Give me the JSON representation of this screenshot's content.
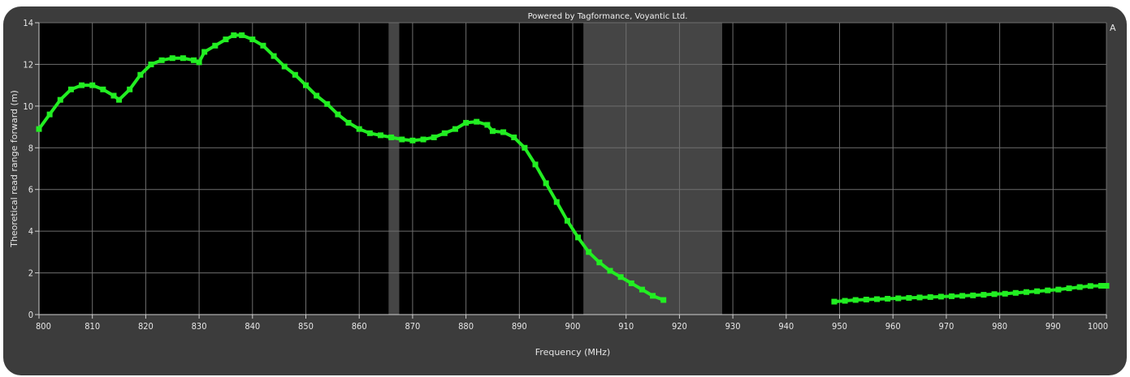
{
  "chart_data": {
    "type": "line",
    "credit": "Powered by Tagformance, Voyantic Ltd.",
    "xlabel": "Frequency (MHz)",
    "ylabel": "Theoretical read range forward (m)",
    "edge_label": "A",
    "xlim": [
      800,
      1000
    ],
    "ylim": [
      0,
      14
    ],
    "x_ticks": [
      800,
      810,
      820,
      830,
      840,
      850,
      860,
      870,
      880,
      890,
      900,
      910,
      920,
      930,
      940,
      950,
      960,
      970,
      980,
      990,
      1000
    ],
    "y_ticks": [
      0,
      2,
      4,
      6,
      8,
      10,
      12,
      14
    ],
    "grid": true,
    "colors": {
      "plot_background": "#000000",
      "frame": "#3c3c3c",
      "grid": "#6e6e6e",
      "series": "#22ee22",
      "band": "#454545"
    },
    "bands": [
      {
        "x0": 865.5,
        "x1": 867.5
      },
      {
        "x0": 902,
        "x1": 928
      }
    ],
    "series": [
      {
        "segments": [
          [
            [
              800,
              8.9
            ],
            [
              802,
              9.6
            ],
            [
              804,
              10.3
            ],
            [
              806,
              10.8
            ],
            [
              808,
              11.0
            ],
            [
              810,
              11.0
            ],
            [
              812,
              10.8
            ],
            [
              814,
              10.5
            ],
            [
              815,
              10.3
            ],
            [
              817,
              10.8
            ],
            [
              819,
              11.5
            ],
            [
              821,
              12.0
            ],
            [
              823,
              12.2
            ],
            [
              825,
              12.3
            ],
            [
              827,
              12.3
            ],
            [
              829,
              12.2
            ],
            [
              830,
              12.1
            ],
            [
              831,
              12.6
            ],
            [
              833,
              12.9
            ],
            [
              835,
              13.2
            ],
            [
              836.5,
              13.4
            ],
            [
              838,
              13.4
            ],
            [
              840,
              13.2
            ],
            [
              842,
              12.9
            ],
            [
              844,
              12.4
            ],
            [
              846,
              11.9
            ],
            [
              848,
              11.5
            ],
            [
              850,
              11.0
            ],
            [
              852,
              10.5
            ],
            [
              854,
              10.1
            ],
            [
              856,
              9.6
            ],
            [
              858,
              9.2
            ],
            [
              860,
              8.9
            ],
            [
              862,
              8.7
            ],
            [
              864,
              8.6
            ],
            [
              866,
              8.5
            ],
            [
              868,
              8.4
            ],
            [
              870,
              8.35
            ],
            [
              872,
              8.4
            ],
            [
              874,
              8.5
            ],
            [
              876,
              8.7
            ],
            [
              878,
              8.9
            ],
            [
              880,
              9.2
            ],
            [
              882,
              9.25
            ],
            [
              884,
              9.1
            ],
            [
              885,
              8.8
            ],
            [
              887,
              8.75
            ],
            [
              889,
              8.5
            ],
            [
              891,
              8.0
            ],
            [
              893,
              7.2
            ],
            [
              895,
              6.3
            ],
            [
              897,
              5.4
            ],
            [
              899,
              4.5
            ],
            [
              901,
              3.7
            ],
            [
              903,
              3.0
            ],
            [
              905,
              2.5
            ],
            [
              907,
              2.1
            ],
            [
              909,
              1.8
            ],
            [
              911,
              1.5
            ],
            [
              913,
              1.2
            ],
            [
              915,
              0.9
            ],
            [
              917,
              0.7
            ]
          ],
          [
            [
              949,
              0.62
            ],
            [
              951,
              0.66
            ],
            [
              953,
              0.7
            ],
            [
              955,
              0.72
            ],
            [
              957,
              0.74
            ],
            [
              959,
              0.76
            ],
            [
              961,
              0.78
            ],
            [
              963,
              0.8
            ],
            [
              965,
              0.82
            ],
            [
              967,
              0.84
            ],
            [
              969,
              0.86
            ],
            [
              971,
              0.88
            ],
            [
              973,
              0.9
            ],
            [
              975,
              0.92
            ],
            [
              977,
              0.95
            ],
            [
              979,
              0.98
            ],
            [
              981,
              1.0
            ],
            [
              983,
              1.04
            ],
            [
              985,
              1.08
            ],
            [
              987,
              1.12
            ],
            [
              989,
              1.16
            ],
            [
              991,
              1.2
            ],
            [
              993,
              1.26
            ],
            [
              995,
              1.32
            ],
            [
              997,
              1.37
            ],
            [
              999,
              1.38
            ],
            [
              1000,
              1.38
            ]
          ]
        ]
      }
    ]
  }
}
